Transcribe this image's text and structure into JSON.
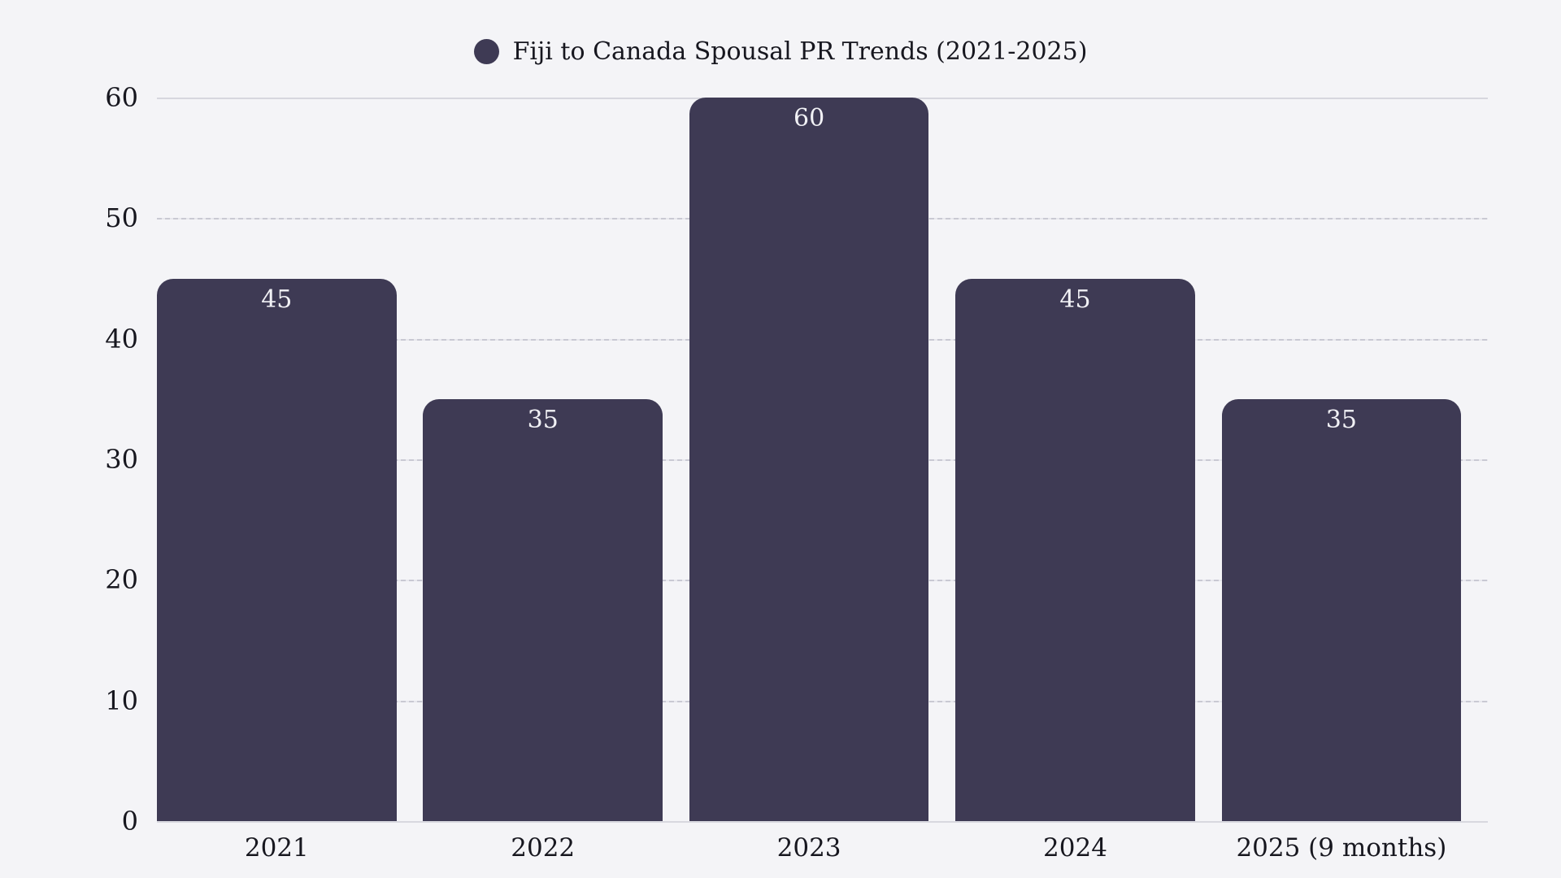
{
  "chart_data": {
    "type": "bar",
    "title": "Fiji to Canada Spousal PR Trends (2021-2025)",
    "categories": [
      "2021",
      "2022",
      "2023",
      "2024",
      "2025 (9 months)"
    ],
    "values": [
      45,
      35,
      60,
      45,
      35
    ],
    "xlabel": "",
    "ylabel": "",
    "ylim": [
      0,
      60
    ],
    "y_ticks": [
      0,
      10,
      20,
      30,
      40,
      50,
      60
    ],
    "y_tick_labels_desc": [
      "60",
      "50",
      "40",
      "30",
      "20",
      "10",
      "0"
    ],
    "grid": true,
    "gridline_style": "dashed",
    "legend_position": "top-center",
    "bar_corner_radius": "rounded-top",
    "colors": {
      "bar": "#3e3a54",
      "background": "#f4f4f7",
      "gridline": "#d8d8df",
      "text": "#17171f",
      "value_label": "#f1f1f5"
    }
  }
}
